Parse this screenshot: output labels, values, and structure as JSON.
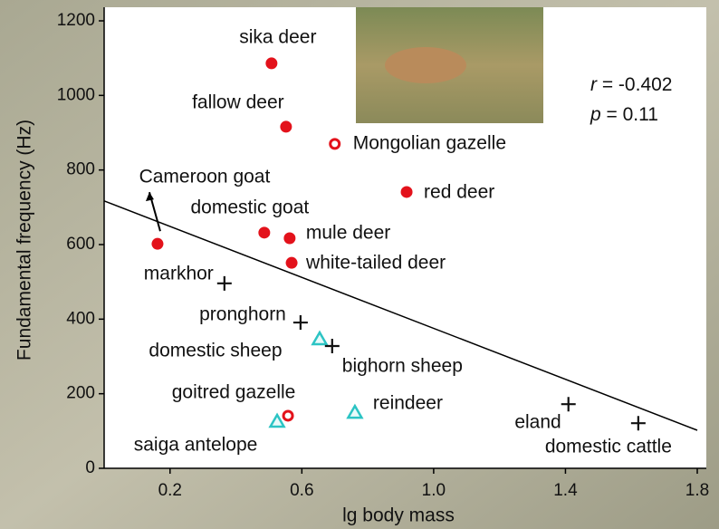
{
  "chart_data": {
    "type": "scatter",
    "x_label": "lg body mass",
    "y_label": "Fundamental frequency (Hz)",
    "xlim": [
      0,
      1.8
    ],
    "xticks": [
      0.2,
      0.6,
      {
        "value": 1.0,
        "label": "1.0"
      },
      1.4,
      1.8
    ],
    "ylim": [
      0,
      1200
    ],
    "yticks": [
      0,
      200,
      400,
      600,
      800,
      1000,
      1200
    ],
    "series": [
      {
        "marker": "filled-circle",
        "color": "#e3121b",
        "x": [
          0.508,
          0.552,
          0.918,
          0.486,
          0.563,
          0.569,
          0.162
        ],
        "y": [
          1086,
          916,
          741,
          632,
          617,
          551,
          602
        ],
        "labels": [
          "sika deer",
          "fallow deer",
          "red deer",
          "domestic goat",
          "mule deer",
          "white-tailed deer",
          "Cameroon goat"
        ]
      },
      {
        "marker": "open-circle",
        "color": "#e3121b",
        "x": [
          0.7,
          0.558
        ],
        "y": [
          870,
          141
        ],
        "labels": [
          "Mongolian gazelle",
          "goitred gazelle"
        ]
      },
      {
        "marker": "triangle",
        "color": "#2cc4c4",
        "x": [
          0.654,
          0.525,
          0.761
        ],
        "y": [
          345,
          124,
          148
        ],
        "labels": [
          "domestic sheep",
          "saiga antelope",
          "reindeer"
        ]
      },
      {
        "marker": "plus",
        "color": "#111111",
        "x": [
          0.365,
          0.596,
          0.692,
          1.409,
          1.621
        ],
        "y": [
          496,
          391,
          328,
          172,
          121
        ],
        "labels": [
          "markhor",
          "pronghorn",
          "bighorn sheep",
          "eland",
          "domestic cattle"
        ]
      }
    ],
    "fit": {
      "x": [
        0,
        1.8
      ],
      "y": [
        717,
        102
      ]
    },
    "stats": [
      {
        "symbol": "r",
        "text": " = -0.402"
      },
      {
        "symbol": "p",
        "text": " = 0.11"
      }
    ]
  }
}
